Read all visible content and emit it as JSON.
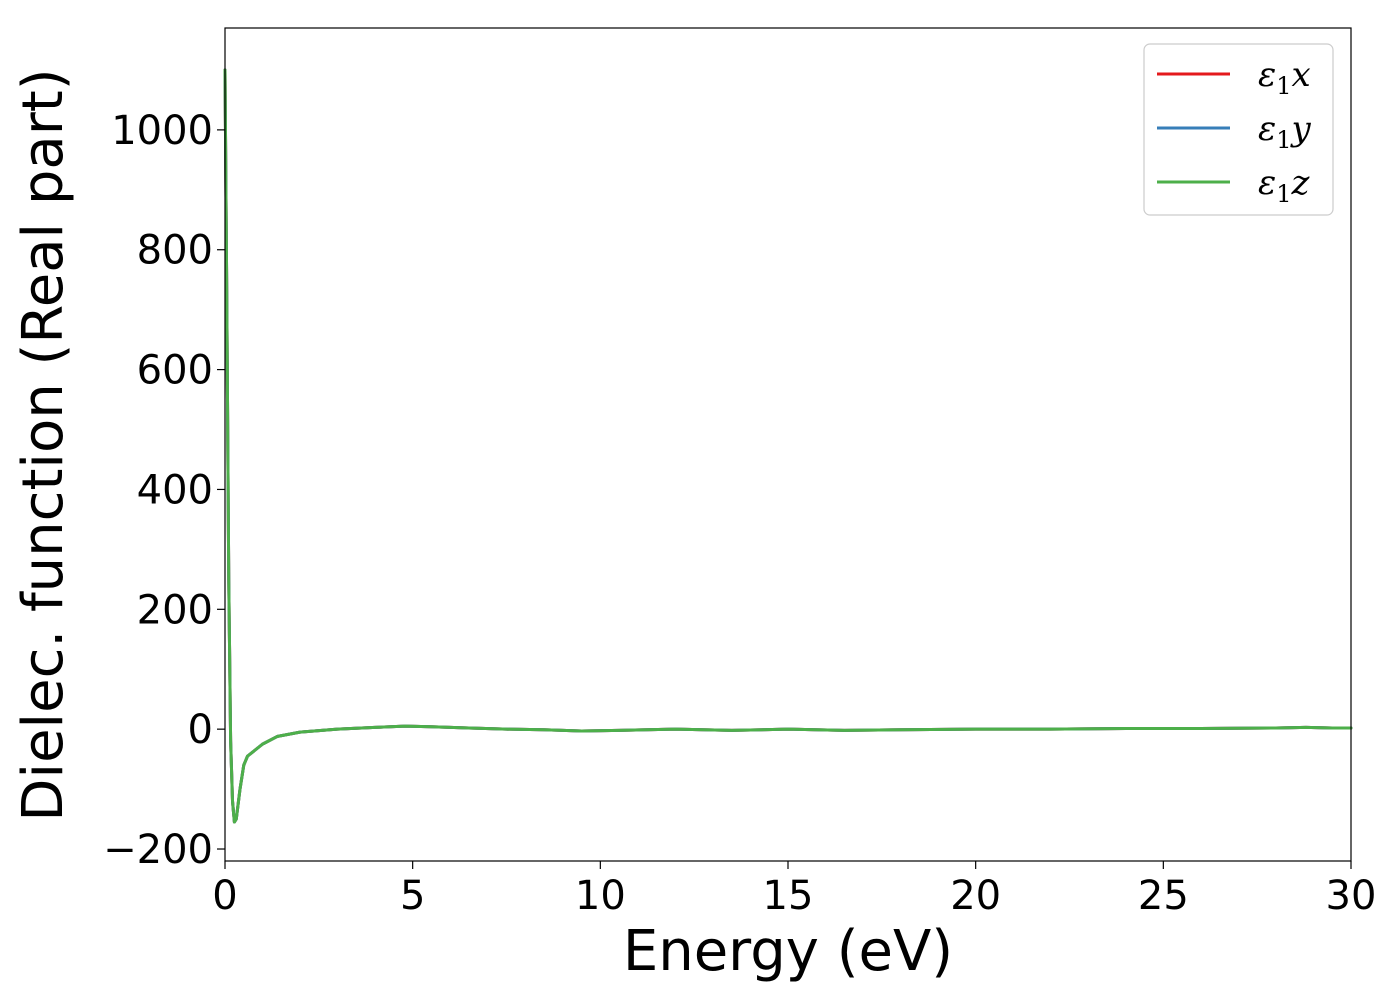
{
  "chart_data": {
    "type": "line",
    "xlabel": "Energy (eV)",
    "ylabel": "Dielec. function (Real part)",
    "xlim": [
      0,
      30
    ],
    "ylim": [
      -220,
      1170
    ],
    "xticks": [
      0,
      5,
      10,
      15,
      20,
      25,
      30
    ],
    "xtick_labels": [
      "0",
      "5",
      "10",
      "15",
      "20",
      "25",
      "30"
    ],
    "yticks": [
      -200,
      0,
      200,
      400,
      600,
      800,
      1000
    ],
    "ytick_labels": [
      "−200",
      "0",
      "200",
      "400",
      "600",
      "800",
      "1000"
    ],
    "grid": false,
    "legend_position": "top-right",
    "series": [
      {
        "name": "ε₁x",
        "legend_base": "ε",
        "legend_sub": "1",
        "legend_suffix": "x",
        "color": "#e41a1c",
        "x": [
          0,
          0.05,
          0.1,
          0.15,
          0.2,
          0.25,
          0.3,
          0.4,
          0.5,
          0.6,
          0.8,
          1.0,
          1.4,
          2.0,
          3.0,
          4.0,
          4.8,
          5.5,
          6.5,
          7.5,
          8.5,
          9.5,
          10.5,
          12.0,
          13.5,
          15.0,
          16.5,
          18.0,
          20.0,
          22.0,
          24.0,
          26.0,
          28.0,
          28.8,
          29.5,
          30.0
        ],
        "y": [
          1100,
          700,
          250,
          -20,
          -120,
          -155,
          -150,
          -100,
          -60,
          -45,
          -35,
          -25,
          -12,
          -5,
          0,
          3,
          5,
          4,
          2,
          0,
          -1,
          -3,
          -2,
          0,
          -2,
          0,
          -2,
          -1,
          0,
          0,
          1,
          1,
          2,
          3,
          2,
          2
        ]
      },
      {
        "name": "ε₁y",
        "legend_base": "ε",
        "legend_sub": "1",
        "legend_suffix": "y",
        "color": "#377eb8",
        "x": [
          0,
          0.05,
          0.1,
          0.15,
          0.2,
          0.25,
          0.3,
          0.4,
          0.5,
          0.6,
          0.8,
          1.0,
          1.4,
          2.0,
          3.0,
          4.0,
          4.8,
          5.5,
          6.5,
          7.5,
          8.5,
          9.5,
          10.5,
          12.0,
          13.5,
          15.0,
          16.5,
          18.0,
          20.0,
          22.0,
          24.0,
          26.0,
          28.0,
          28.8,
          29.5,
          30.0
        ],
        "y": [
          1100,
          700,
          250,
          -20,
          -120,
          -155,
          -150,
          -100,
          -60,
          -45,
          -35,
          -25,
          -12,
          -5,
          0,
          3,
          5,
          4,
          2,
          0,
          -1,
          -3,
          -2,
          0,
          -2,
          0,
          -2,
          -1,
          0,
          0,
          1,
          1,
          2,
          3,
          2,
          2
        ]
      },
      {
        "name": "ε₁z",
        "legend_base": "ε",
        "legend_sub": "1",
        "legend_suffix": "z",
        "color": "#4daf4a",
        "x": [
          0,
          0.05,
          0.1,
          0.15,
          0.2,
          0.25,
          0.3,
          0.4,
          0.5,
          0.6,
          0.8,
          1.0,
          1.4,
          2.0,
          3.0,
          4.0,
          4.8,
          5.5,
          6.5,
          7.5,
          8.5,
          9.5,
          10.5,
          12.0,
          13.5,
          15.0,
          16.5,
          18.0,
          20.0,
          22.0,
          24.0,
          26.0,
          28.0,
          28.8,
          29.5,
          30.0
        ],
        "y": [
          1100,
          700,
          250,
          -20,
          -120,
          -155,
          -150,
          -100,
          -60,
          -45,
          -35,
          -25,
          -12,
          -5,
          0,
          3,
          5,
          4,
          2,
          0,
          -1,
          -3,
          -2,
          0,
          -2,
          0,
          -2,
          -1,
          0,
          0,
          1,
          1,
          2,
          3,
          2,
          2
        ]
      }
    ]
  }
}
